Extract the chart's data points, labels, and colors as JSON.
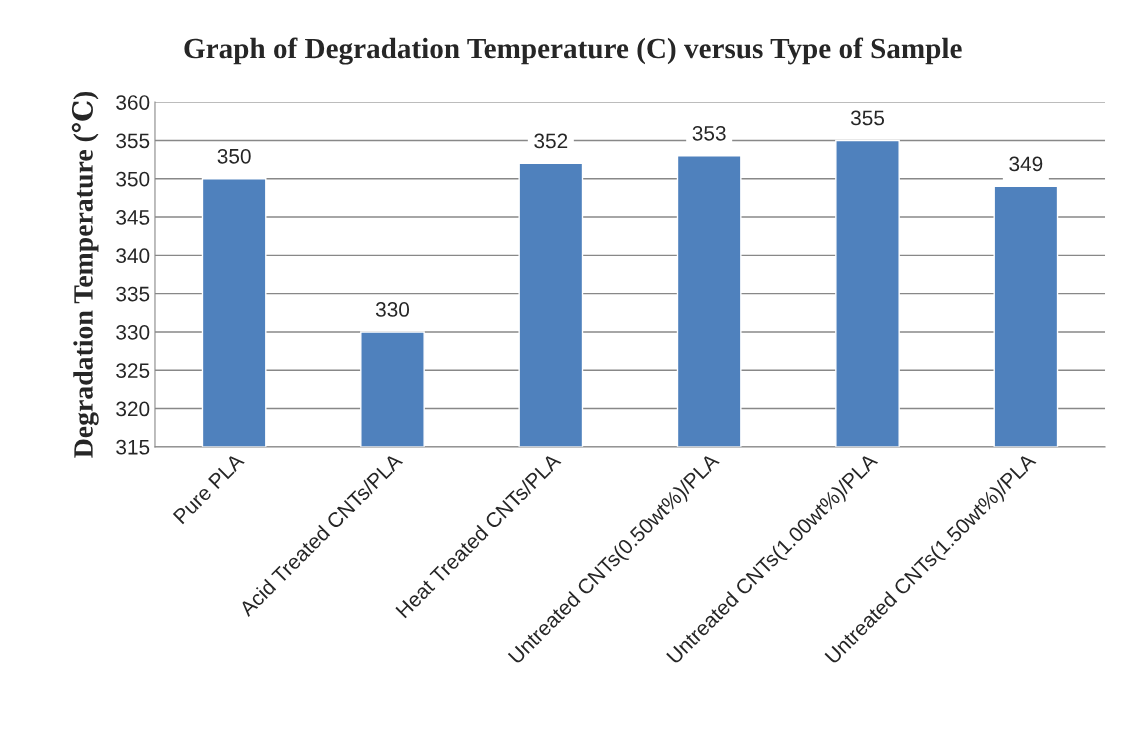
{
  "chart_data": {
    "type": "bar",
    "title": "Graph of Degradation Temperature (C) versus Type of Sample",
    "ylabel": "Degradation Temperature (℃)",
    "categories": [
      "Pure PLA",
      "Acid Treated CNTs/PLA",
      "Heat Treated CNTs/PLA",
      "Untreated CNTs(0.50wt%)/PLA",
      "Untreated CNTs(1.00wt%)/PLA",
      "Untreated CNTs(1.50wt%)/PLA"
    ],
    "values": [
      350,
      330,
      352,
      353,
      355,
      349
    ],
    "color": "#4f81bd",
    "ylim": [
      315,
      360
    ],
    "yticks": [
      315,
      320,
      325,
      330,
      335,
      340,
      345,
      350,
      355,
      360
    ],
    "grid": "y",
    "data_labels": true
  }
}
